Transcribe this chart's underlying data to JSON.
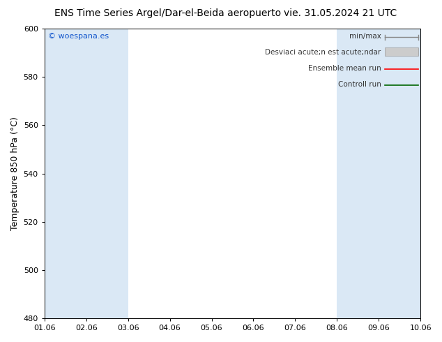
{
  "title_left": "ENS Time Series Argel/Dar-el-Beida aeropuerto",
  "title_right": "vie. 31.05.2024 21 UTC",
  "ylabel": "Temperature 850 hPa (°C)",
  "ylim": [
    480,
    600
  ],
  "yticks": [
    480,
    500,
    520,
    540,
    560,
    580,
    600
  ],
  "xlim": [
    0,
    9
  ],
  "xtick_labels": [
    "01.06",
    "02.06",
    "03.06",
    "04.06",
    "05.06",
    "06.06",
    "07.06",
    "08.06",
    "09.06",
    "10.06"
  ],
  "copyright": "© woespana.es",
  "legend_entries": [
    "min/max",
    "Desviaci acute;n est acute;ndar",
    "Ensemble mean run",
    "Controll run"
  ],
  "shaded_columns": [
    0,
    1,
    7,
    8
  ],
  "shade_color": "#dae8f5",
  "bg_color": "#ffffff",
  "title_fontsize": 10,
  "axis_fontsize": 9,
  "tick_fontsize": 8,
  "copyright_fontsize": 8,
  "legend_fontsize": 7.5
}
